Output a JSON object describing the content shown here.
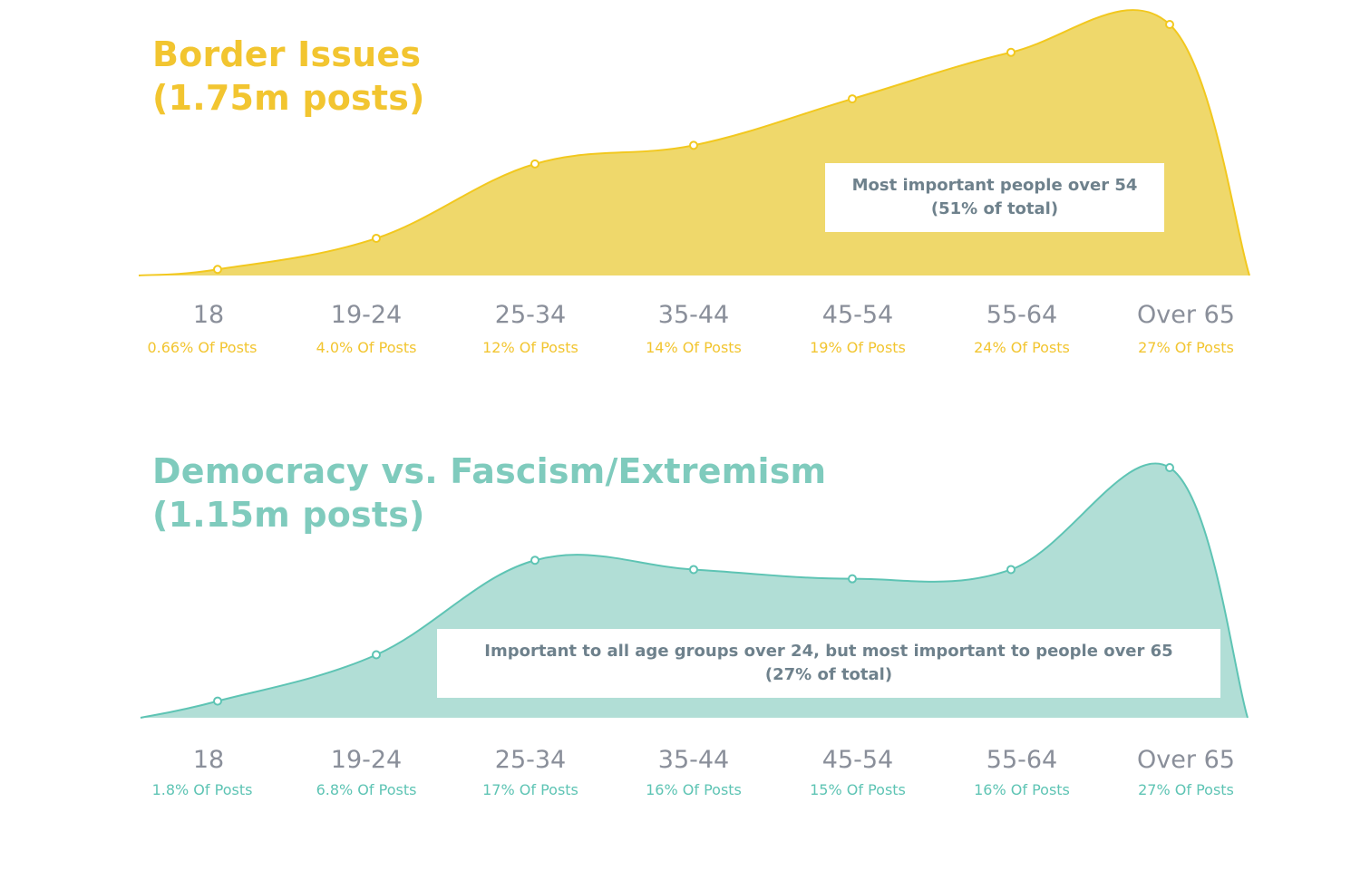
{
  "chart_data": [
    {
      "type": "area",
      "title": "Border Issues",
      "subtitle": "(1.75m posts)",
      "color": "#f2c81e",
      "fill": "#efd86b",
      "categories": [
        "18",
        "19-24",
        "25-34",
        "35-44",
        "45-54",
        "55-64",
        "Over 65"
      ],
      "values": [
        0.66,
        4.0,
        12,
        14,
        19,
        24,
        27
      ],
      "value_labels": [
        "0.66% Of Posts",
        "4.0% Of Posts",
        "12% Of Posts",
        "14% Of Posts",
        "19% Of Posts",
        "24% Of Posts",
        "27% Of Posts"
      ],
      "unit": "% Of Posts",
      "annotation": {
        "line1": "Most important people  over 54",
        "line2": "(51% of total)"
      },
      "grid": false,
      "legend": "none"
    },
    {
      "type": "area",
      "title": "Democracy vs. Fascism/Extremism",
      "subtitle": "(1.15m posts)",
      "color": "#5ec4b4",
      "fill": "#b1ded6",
      "categories": [
        "18",
        "19-24",
        "25-34",
        "35-44",
        "45-54",
        "55-64",
        "Over 65"
      ],
      "values": [
        1.8,
        6.8,
        17,
        16,
        15,
        16,
        27
      ],
      "value_labels": [
        "1.8% Of Posts",
        "6.8% Of Posts",
        "17% Of Posts",
        "16% Of Posts",
        "15% Of Posts",
        "16% Of Posts",
        "27% Of Posts"
      ],
      "unit": "% Of Posts",
      "annotation": {
        "line1": "Important to all age groups over 24, but most important to people over 65",
        "line2": "(27% of total)"
      },
      "grid": false,
      "legend": "none"
    }
  ]
}
